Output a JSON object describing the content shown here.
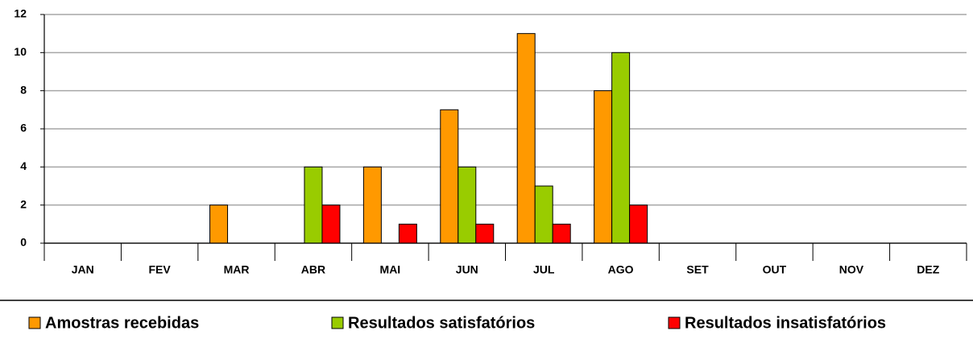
{
  "chart_data": {
    "type": "bar",
    "categories": [
      "JAN",
      "FEV",
      "MAR",
      "ABR",
      "MAI",
      "JUN",
      "JUL",
      "AGO",
      "SET",
      "OUT",
      "NOV",
      "DEZ"
    ],
    "series": [
      {
        "name": "Amostras recebidas",
        "color": "#ff9900",
        "values": [
          0,
          0,
          2,
          0,
          4,
          7,
          11,
          8,
          0,
          0,
          0,
          0
        ]
      },
      {
        "name": "Resultados satisfatórios",
        "color": "#99cc00",
        "values": [
          0,
          0,
          0,
          4,
          0,
          4,
          3,
          10,
          0,
          0,
          0,
          0
        ]
      },
      {
        "name": "Resultados insatisfatórios",
        "color": "#ff0000",
        "values": [
          0,
          0,
          0,
          2,
          1,
          1,
          1,
          2,
          0,
          0,
          0,
          0
        ]
      }
    ],
    "ylim": [
      0,
      12
    ],
    "yticks": [
      0,
      2,
      4,
      6,
      8,
      10,
      12
    ],
    "grid": true
  }
}
